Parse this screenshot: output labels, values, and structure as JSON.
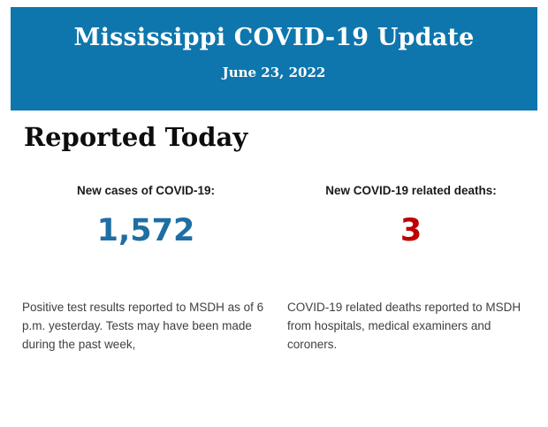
{
  "banner": {
    "title": "Mississippi COVID-19 Update",
    "date": "June 23, 2022",
    "background_color": "#0e76ad",
    "text_color": "#ffffff"
  },
  "section": {
    "heading": "Reported Today"
  },
  "stats": {
    "cases": {
      "label": "New cases of COVID-19:",
      "value": "1,572",
      "value_color": "#1e6ea3",
      "description": "Positive test results reported to MSDH as of 6 p.m. yesterday. Tests may have been made during the past week,"
    },
    "deaths": {
      "label": "New COVID-19 related deaths:",
      "value": "3",
      "value_color": "#c00000",
      "description": "COVID-19 related deaths reported to MSDH from hospitals, medical examiners and coroners."
    }
  }
}
